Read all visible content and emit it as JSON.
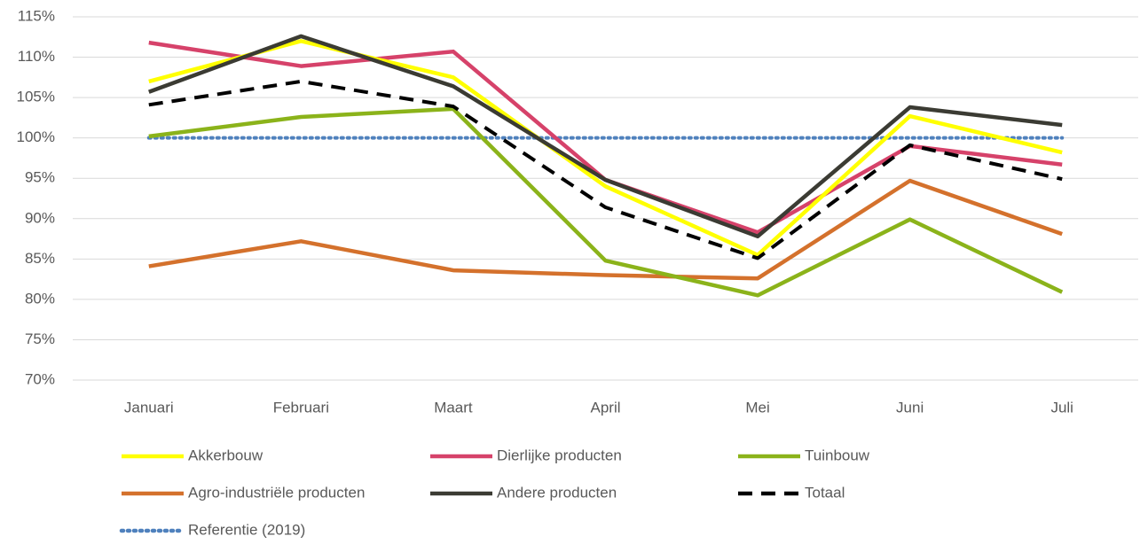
{
  "chart_data": {
    "type": "line",
    "categories": [
      "Januari",
      "Februari",
      "Maart",
      "April",
      "Mei",
      "Juni",
      "Juli"
    ],
    "series": [
      {
        "name": "Akkerbouw",
        "color": "#ffff00",
        "line_style": "solid",
        "values": [
          107,
          112,
          107.5,
          94,
          85.5,
          102.7,
          98.2
        ]
      },
      {
        "name": "Dierlijke producten",
        "color": "#d6426a",
        "line_style": "solid",
        "values": [
          111.8,
          108.9,
          110.7,
          94.8,
          88.3,
          99,
          96.7
        ]
      },
      {
        "name": "Tuinbouw",
        "color": "#8bb31a",
        "line_style": "solid",
        "values": [
          100.2,
          102.6,
          103.6,
          84.8,
          80.5,
          89.9,
          80.9
        ]
      },
      {
        "name": "Agro-industriële producten",
        "color": "#d4712c",
        "line_style": "solid",
        "values": [
          84.1,
          87.2,
          83.6,
          83,
          82.6,
          94.7,
          88.1
        ]
      },
      {
        "name": "Andere producten",
        "color": "#3b3b33",
        "line_style": "solid",
        "values": [
          105.7,
          112.6,
          106.4,
          94.8,
          87.8,
          103.8,
          101.6
        ]
      },
      {
        "name": "Totaal",
        "color": "#000000",
        "line_style": "dashed",
        "values": [
          104.1,
          107,
          103.9,
          91.4,
          85.1,
          99.1,
          94.9
        ]
      },
      {
        "name": "Referentie (2019)",
        "color": "#4f81bd",
        "line_style": "dotted",
        "values": [
          100,
          100,
          100,
          100,
          100,
          100,
          100
        ]
      }
    ],
    "ylim": [
      70,
      115
    ],
    "yticks": [
      {
        "value": 70,
        "label": "70%"
      },
      {
        "value": 75,
        "label": "75%"
      },
      {
        "value": 80,
        "label": "80%"
      },
      {
        "value": 85,
        "label": "85%"
      },
      {
        "value": 90,
        "label": "90%"
      },
      {
        "value": 95,
        "label": "95%"
      },
      {
        "value": 100,
        "label": "100%"
      },
      {
        "value": 105,
        "label": "105%"
      },
      {
        "value": 110,
        "label": "110%"
      },
      {
        "value": 115,
        "label": "115%"
      }
    ],
    "grid": true,
    "legend": "bottom"
  }
}
